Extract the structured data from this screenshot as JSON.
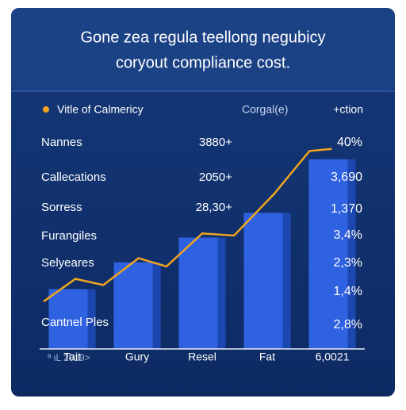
{
  "header": {
    "title": [
      "Gone zea regula teellong negubicy",
      "coryout compliance cost."
    ]
  },
  "chart_data": {
    "type": "bar",
    "categories": [
      "Tait",
      "Gury",
      "Resel",
      "Fat",
      "6,0021"
    ],
    "series": [
      {
        "type": "bar",
        "color": "#2f62e0",
        "values": [
          29,
          42,
          54,
          66,
          92
        ]
      },
      {
        "type": "line",
        "name": "Vitle of Calmericy",
        "color": "#f0a51e",
        "x": [
          0.06,
          0.55,
          0.98,
          1.52,
          1.95,
          2.5,
          2.99,
          3.6,
          4.15,
          4.49
        ],
        "values": [
          23,
          34,
          31,
          44,
          40,
          56,
          55,
          75,
          96,
          97
        ]
      }
    ],
    "xlim": [
      0,
      5
    ],
    "ylim": [
      0,
      100
    ]
  },
  "table": {
    "columns": [
      "Corgal(e)",
      "+ction"
    ],
    "rows": [
      [
        "Nannes",
        "3880+"
      ],
      [
        "Callecations",
        "2050+"
      ],
      [
        "Sorress",
        "28,30+"
      ],
      [
        "Furangiles"
      ],
      [
        "Selyeares"
      ],
      [
        "Cantnel Ples"
      ]
    ],
    "right": [
      "40%",
      "3,690",
      "1,370",
      "3,4%",
      "2,3%",
      "1,4%",
      "2,8%"
    ]
  },
  "footer": "ª ιL 2019>"
}
